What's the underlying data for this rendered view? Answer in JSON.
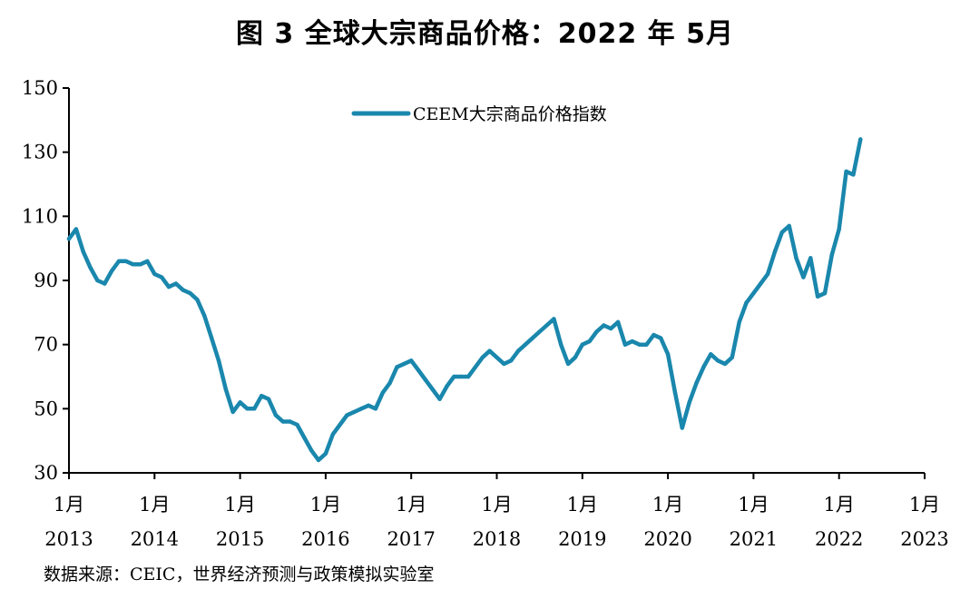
{
  "title": "图 3 全球大宗商品价格：2022 年 5月",
  "source": "数据来源：CEIC，世界经济预测与政策模拟实验室",
  "colors": {
    "series": "#1a87ad",
    "axis": "#000000"
  },
  "chart_data": {
    "type": "line",
    "title": "图 3 全球大宗商品价格：2022 年 5月",
    "xlabel": "",
    "ylabel": "",
    "ylim": [
      30,
      150
    ],
    "yticks": [
      "30",
      "50",
      "70",
      "90",
      "110",
      "130",
      "150"
    ],
    "xticks": [
      {
        "month": "1月",
        "year": "2013"
      },
      {
        "month": "1月",
        "year": "2014"
      },
      {
        "month": "1月",
        "year": "2015"
      },
      {
        "month": "1月",
        "year": "2016"
      },
      {
        "month": "1月",
        "year": "2017"
      },
      {
        "month": "1月",
        "year": "2018"
      },
      {
        "month": "1月",
        "year": "2019"
      },
      {
        "month": "1月",
        "year": "2020"
      },
      {
        "month": "1月",
        "year": "2021"
      },
      {
        "month": "1月",
        "year": "2022"
      },
      {
        "month": "1月",
        "year": "2023"
      }
    ],
    "grid": false,
    "legend_position": "top",
    "series": [
      {
        "name": "CEEM大宗商品价格指数",
        "start": "2013-01",
        "frequency": "monthly",
        "values": [
          103,
          106,
          99,
          94,
          90,
          89,
          93,
          96,
          96,
          95,
          95,
          96,
          92,
          91,
          88,
          89,
          87,
          86,
          84,
          79,
          72,
          65,
          56,
          49,
          52,
          50,
          50,
          54,
          53,
          48,
          46,
          46,
          45,
          41,
          37,
          34,
          36,
          42,
          45,
          48,
          49,
          50,
          51,
          50,
          55,
          58,
          63,
          64,
          65,
          62,
          59,
          56,
          53,
          57,
          60,
          60,
          60,
          63,
          66,
          68,
          66,
          64,
          65,
          68,
          70,
          72,
          74,
          76,
          78,
          70,
          64,
          66,
          70,
          71,
          74,
          76,
          75,
          77,
          70,
          71,
          70,
          70,
          73,
          72,
          67,
          55,
          44,
          52,
          58,
          63,
          67,
          65,
          64,
          66,
          77,
          83,
          86,
          89,
          92,
          99,
          105,
          107,
          97,
          91,
          97,
          85,
          86,
          98,
          106,
          124,
          123,
          134
        ]
      }
    ]
  }
}
